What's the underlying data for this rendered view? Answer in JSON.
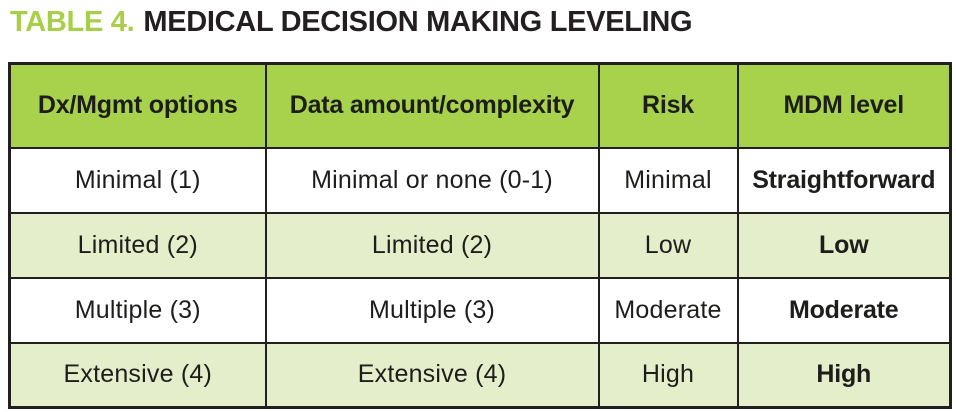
{
  "title": {
    "label": "TABLE 4.",
    "text": "MEDICAL DECISION MAKING LEVELING"
  },
  "colors": {
    "accent_green": "#a8d24b",
    "title_green": "#a8cf4a",
    "row_tint_green": "#e5eeca",
    "border_black": "#231f20",
    "text_black": "#1d1d1b"
  },
  "table": {
    "headers": [
      "Dx/Mgmt options",
      "Data amount/complexity",
      "Risk",
      "MDM level"
    ],
    "rows": [
      [
        "Minimal (1)",
        "Minimal or none (0-1)",
        "Minimal",
        "Straightforward"
      ],
      [
        "Limited (2)",
        "Limited (2)",
        "Low",
        "Low"
      ],
      [
        "Multiple (3)",
        "Multiple (3)",
        "Moderate",
        "Moderate"
      ],
      [
        "Extensive (4)",
        "Extensive (4)",
        "High",
        "High"
      ]
    ]
  }
}
